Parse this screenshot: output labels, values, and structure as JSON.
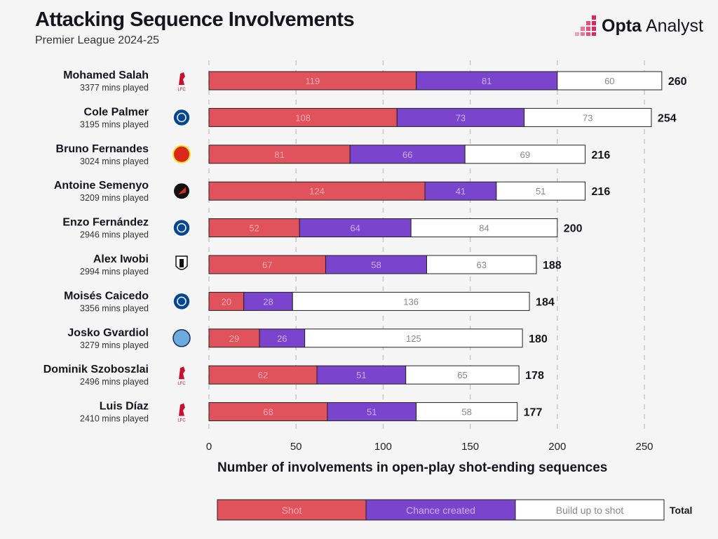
{
  "title": "Attacking Sequence Involvements",
  "subtitle": "Premier League 2024-25",
  "logo": {
    "bold": "Opta",
    "light": "Analyst"
  },
  "colors": {
    "shot": "#e0525c",
    "chance": "#7b44cc",
    "buildup": "#ffffff",
    "accent": "#e0245e"
  },
  "chart_data": {
    "type": "bar",
    "stacked": true,
    "orientation": "horizontal",
    "xlabel": "Number of involvements in open-play shot-ending sequences",
    "xlim": [
      0,
      260
    ],
    "xticks": [
      0,
      50,
      100,
      150,
      200,
      250
    ],
    "grid": true,
    "legend_placement": "bottom",
    "categories": [
      {
        "name": "Mohamed Salah",
        "mins": "3377 mins played",
        "club": "liverpool-crest-icon"
      },
      {
        "name": "Cole Palmer",
        "mins": "3195 mins played",
        "club": "chelsea-crest-icon"
      },
      {
        "name": "Bruno Fernandes",
        "mins": "3024 mins played",
        "club": "man-utd-crest-icon"
      },
      {
        "name": "Antoine Semenyo",
        "mins": "3209 mins played",
        "club": "bournemouth-crest-icon"
      },
      {
        "name": "Enzo Fernández",
        "mins": "2946 mins played",
        "club": "chelsea-crest-icon"
      },
      {
        "name": "Alex Iwobi",
        "mins": "2994 mins played",
        "club": "fulham-crest-icon"
      },
      {
        "name": "Moisés Caicedo",
        "mins": "3356 mins played",
        "club": "chelsea-crest-icon"
      },
      {
        "name": "Josko Gvardiol",
        "mins": "3279 mins played",
        "club": "man-city-crest-icon"
      },
      {
        "name": "Dominik Szoboszlai",
        "mins": "2496 mins played",
        "club": "liverpool-crest-icon"
      },
      {
        "name": "Luis Díaz",
        "mins": "2410 mins played",
        "club": "liverpool-crest-icon"
      }
    ],
    "series": [
      {
        "name": "Shot",
        "values": [
          119,
          108,
          81,
          124,
          52,
          67,
          20,
          29,
          62,
          68
        ]
      },
      {
        "name": "Chance created",
        "values": [
          81,
          73,
          66,
          41,
          64,
          58,
          28,
          26,
          51,
          51
        ]
      },
      {
        "name": "Build up to shot",
        "values": [
          60,
          73,
          69,
          51,
          84,
          63,
          136,
          125,
          65,
          58
        ]
      }
    ],
    "totals": [
      260,
      254,
      216,
      216,
      200,
      188,
      184,
      180,
      178,
      177
    ],
    "total_label": "Total"
  }
}
